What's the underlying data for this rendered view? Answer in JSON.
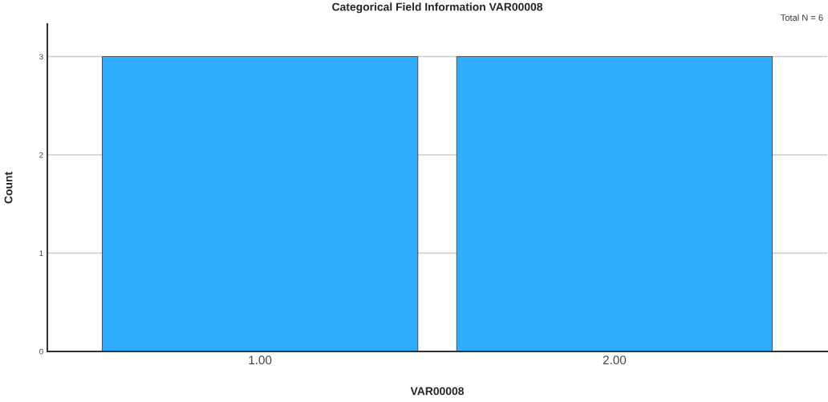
{
  "chart_data": {
    "type": "bar",
    "title": "Categorical Field Information VAR00008",
    "xlabel": "VAR00008",
    "ylabel": "Count",
    "categories": [
      "1.00",
      "2.00"
    ],
    "values": [
      3,
      3
    ],
    "color": "#30adfe",
    "ylim": [
      0,
      3.33
    ],
    "yticks": [
      0,
      1,
      2,
      3
    ],
    "grid": "y",
    "annotations": [
      "Total N = 6"
    ]
  }
}
